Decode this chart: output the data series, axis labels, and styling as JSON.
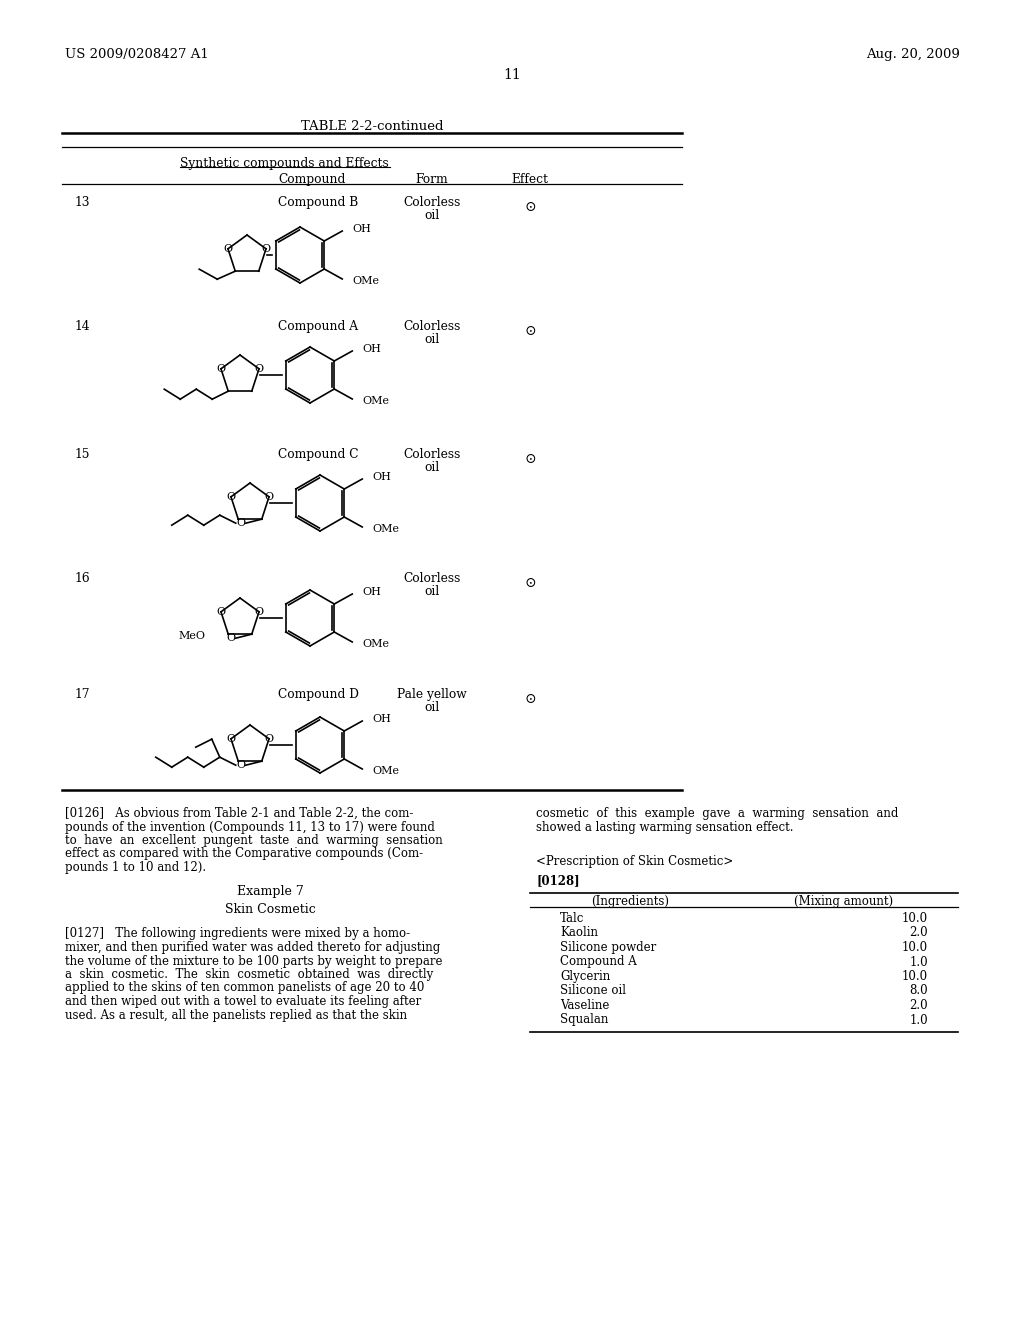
{
  "page_number": "11",
  "left_header": "US 2009/0208427 A1",
  "right_header": "Aug. 20, 2009",
  "table_title": "TABLE 2-2-continued",
  "table_subtitle": "Synthetic compounds and Effects",
  "col_headers": [
    "Compound",
    "Form",
    "Effect"
  ],
  "rows": [
    {
      "num": "13",
      "name": "Compound B",
      "form": "Colorless\noil",
      "effect": "⊙"
    },
    {
      "num": "14",
      "name": "Compound A",
      "form": "Colorless\noil",
      "effect": "⊙"
    },
    {
      "num": "15",
      "name": "Compound C",
      "form": "Colorless\noil",
      "effect": "⊙"
    },
    {
      "num": "16",
      "name": "",
      "form": "Colorless\noil",
      "effect": "⊙"
    },
    {
      "num": "17",
      "name": "Compound D",
      "form": "Pale yellow\noil",
      "effect": "⊙"
    }
  ],
  "lines_0126_left": [
    "[0126]   As obvious from Table 2-1 and Table 2-2, the com-",
    "pounds of the invention (Compounds 11, 13 to 17) were found",
    "to  have  an  excellent  pungent  taste  and  warming  sensation",
    "effect as compared with the Comparative compounds (Com-",
    "pounds 1 to 10 and 12)."
  ],
  "lines_0126_right": [
    "cosmetic  of  this  example  gave  a  warming  sensation  and",
    "showed a lasting warming sensation effect."
  ],
  "prescription_label": "<Prescription of Skin Cosmetic>",
  "paragraph_0128_label": "[0128]",
  "example7_title": "Example 7",
  "example7_subtitle": "Skin Cosmetic",
  "lines_0127": [
    "[0127]   The following ingredients were mixed by a homo-",
    "mixer, and then purified water was added thereto for adjusting",
    "the volume of the mixture to be 100 parts by weight to prepare",
    "a  skin  cosmetic.  The  skin  cosmetic  obtained  was  directly",
    "applied to the skins of ten common panelists of age 20 to 40",
    "and then wiped out with a towel to evaluate its feeling after",
    "used. As a result, all the panelists replied as that the skin"
  ],
  "ingredients_col1": "(Ingredients)",
  "ingredients_col2": "(Mixing amount)",
  "ingredients": [
    [
      "Talc",
      "10.0"
    ],
    [
      "Kaolin",
      "2.0"
    ],
    [
      "Silicone powder",
      "10.0"
    ],
    [
      "Compound A",
      "1.0"
    ],
    [
      "Glycerin",
      "10.0"
    ],
    [
      "Silicone oil",
      "8.0"
    ],
    [
      "Vaseline",
      "2.0"
    ],
    [
      "Squalan",
      "1.0"
    ]
  ],
  "bg_color": "#ffffff",
  "text_color": "#000000"
}
